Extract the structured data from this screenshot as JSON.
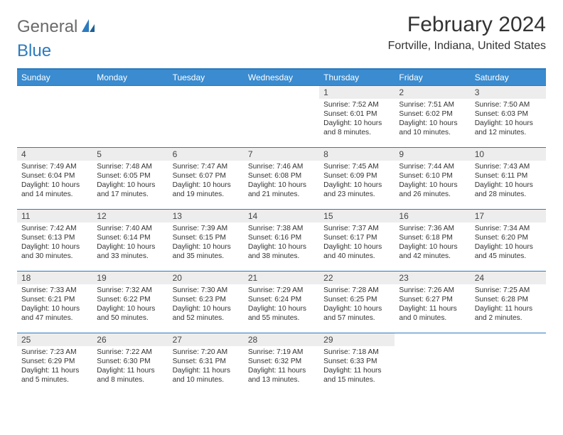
{
  "logo": {
    "text1": "General",
    "text2": "Blue"
  },
  "header": {
    "month_title": "February 2024",
    "location": "Fortville, Indiana, United States"
  },
  "colors": {
    "header_bar": "#3a8bcf",
    "rule": "#2b7bbf",
    "daynum_bg": "#ededed",
    "text": "#333333"
  },
  "day_names": [
    "Sunday",
    "Monday",
    "Tuesday",
    "Wednesday",
    "Thursday",
    "Friday",
    "Saturday"
  ],
  "weeks": [
    [
      {
        "n": "",
        "sr": "",
        "ss": "",
        "dl": ""
      },
      {
        "n": "",
        "sr": "",
        "ss": "",
        "dl": ""
      },
      {
        "n": "",
        "sr": "",
        "ss": "",
        "dl": ""
      },
      {
        "n": "",
        "sr": "",
        "ss": "",
        "dl": ""
      },
      {
        "n": "1",
        "sr": "Sunrise: 7:52 AM",
        "ss": "Sunset: 6:01 PM",
        "dl": "Daylight: 10 hours and 8 minutes."
      },
      {
        "n": "2",
        "sr": "Sunrise: 7:51 AM",
        "ss": "Sunset: 6:02 PM",
        "dl": "Daylight: 10 hours and 10 minutes."
      },
      {
        "n": "3",
        "sr": "Sunrise: 7:50 AM",
        "ss": "Sunset: 6:03 PM",
        "dl": "Daylight: 10 hours and 12 minutes."
      }
    ],
    [
      {
        "n": "4",
        "sr": "Sunrise: 7:49 AM",
        "ss": "Sunset: 6:04 PM",
        "dl": "Daylight: 10 hours and 14 minutes."
      },
      {
        "n": "5",
        "sr": "Sunrise: 7:48 AM",
        "ss": "Sunset: 6:05 PM",
        "dl": "Daylight: 10 hours and 17 minutes."
      },
      {
        "n": "6",
        "sr": "Sunrise: 7:47 AM",
        "ss": "Sunset: 6:07 PM",
        "dl": "Daylight: 10 hours and 19 minutes."
      },
      {
        "n": "7",
        "sr": "Sunrise: 7:46 AM",
        "ss": "Sunset: 6:08 PM",
        "dl": "Daylight: 10 hours and 21 minutes."
      },
      {
        "n": "8",
        "sr": "Sunrise: 7:45 AM",
        "ss": "Sunset: 6:09 PM",
        "dl": "Daylight: 10 hours and 23 minutes."
      },
      {
        "n": "9",
        "sr": "Sunrise: 7:44 AM",
        "ss": "Sunset: 6:10 PM",
        "dl": "Daylight: 10 hours and 26 minutes."
      },
      {
        "n": "10",
        "sr": "Sunrise: 7:43 AM",
        "ss": "Sunset: 6:11 PM",
        "dl": "Daylight: 10 hours and 28 minutes."
      }
    ],
    [
      {
        "n": "11",
        "sr": "Sunrise: 7:42 AM",
        "ss": "Sunset: 6:13 PM",
        "dl": "Daylight: 10 hours and 30 minutes."
      },
      {
        "n": "12",
        "sr": "Sunrise: 7:40 AM",
        "ss": "Sunset: 6:14 PM",
        "dl": "Daylight: 10 hours and 33 minutes."
      },
      {
        "n": "13",
        "sr": "Sunrise: 7:39 AM",
        "ss": "Sunset: 6:15 PM",
        "dl": "Daylight: 10 hours and 35 minutes."
      },
      {
        "n": "14",
        "sr": "Sunrise: 7:38 AM",
        "ss": "Sunset: 6:16 PM",
        "dl": "Daylight: 10 hours and 38 minutes."
      },
      {
        "n": "15",
        "sr": "Sunrise: 7:37 AM",
        "ss": "Sunset: 6:17 PM",
        "dl": "Daylight: 10 hours and 40 minutes."
      },
      {
        "n": "16",
        "sr": "Sunrise: 7:36 AM",
        "ss": "Sunset: 6:18 PM",
        "dl": "Daylight: 10 hours and 42 minutes."
      },
      {
        "n": "17",
        "sr": "Sunrise: 7:34 AM",
        "ss": "Sunset: 6:20 PM",
        "dl": "Daylight: 10 hours and 45 minutes."
      }
    ],
    [
      {
        "n": "18",
        "sr": "Sunrise: 7:33 AM",
        "ss": "Sunset: 6:21 PM",
        "dl": "Daylight: 10 hours and 47 minutes."
      },
      {
        "n": "19",
        "sr": "Sunrise: 7:32 AM",
        "ss": "Sunset: 6:22 PM",
        "dl": "Daylight: 10 hours and 50 minutes."
      },
      {
        "n": "20",
        "sr": "Sunrise: 7:30 AM",
        "ss": "Sunset: 6:23 PM",
        "dl": "Daylight: 10 hours and 52 minutes."
      },
      {
        "n": "21",
        "sr": "Sunrise: 7:29 AM",
        "ss": "Sunset: 6:24 PM",
        "dl": "Daylight: 10 hours and 55 minutes."
      },
      {
        "n": "22",
        "sr": "Sunrise: 7:28 AM",
        "ss": "Sunset: 6:25 PM",
        "dl": "Daylight: 10 hours and 57 minutes."
      },
      {
        "n": "23",
        "sr": "Sunrise: 7:26 AM",
        "ss": "Sunset: 6:27 PM",
        "dl": "Daylight: 11 hours and 0 minutes."
      },
      {
        "n": "24",
        "sr": "Sunrise: 7:25 AM",
        "ss": "Sunset: 6:28 PM",
        "dl": "Daylight: 11 hours and 2 minutes."
      }
    ],
    [
      {
        "n": "25",
        "sr": "Sunrise: 7:23 AM",
        "ss": "Sunset: 6:29 PM",
        "dl": "Daylight: 11 hours and 5 minutes."
      },
      {
        "n": "26",
        "sr": "Sunrise: 7:22 AM",
        "ss": "Sunset: 6:30 PM",
        "dl": "Daylight: 11 hours and 8 minutes."
      },
      {
        "n": "27",
        "sr": "Sunrise: 7:20 AM",
        "ss": "Sunset: 6:31 PM",
        "dl": "Daylight: 11 hours and 10 minutes."
      },
      {
        "n": "28",
        "sr": "Sunrise: 7:19 AM",
        "ss": "Sunset: 6:32 PM",
        "dl": "Daylight: 11 hours and 13 minutes."
      },
      {
        "n": "29",
        "sr": "Sunrise: 7:18 AM",
        "ss": "Sunset: 6:33 PM",
        "dl": "Daylight: 11 hours and 15 minutes."
      },
      {
        "n": "",
        "sr": "",
        "ss": "",
        "dl": ""
      },
      {
        "n": "",
        "sr": "",
        "ss": "",
        "dl": ""
      }
    ]
  ]
}
